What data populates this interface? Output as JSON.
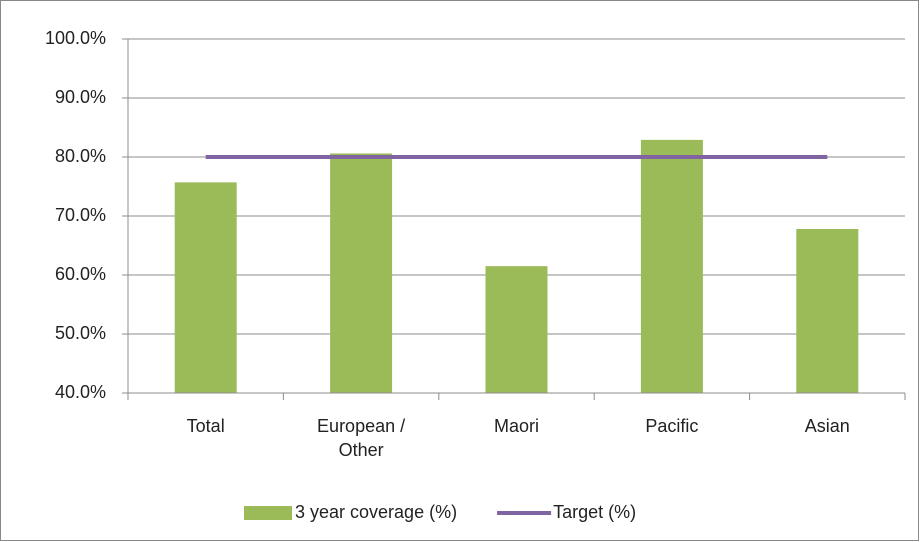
{
  "chart_data": {
    "type": "bar",
    "categories": [
      "Total",
      "European / Other",
      "Maori",
      "Pacific",
      "Asian"
    ],
    "series": [
      {
        "name": "3 year coverage (%)",
        "type": "bar",
        "color": "#9bbb59",
        "values": [
          75.7,
          80.6,
          61.5,
          82.9,
          67.8
        ]
      },
      {
        "name": "Target (%)",
        "type": "line",
        "color": "#8064a2",
        "values": [
          80,
          80,
          80,
          80,
          80
        ]
      }
    ],
    "ylim": [
      40,
      100
    ],
    "yticks": [
      {
        "value": 40,
        "label": "40.0%"
      },
      {
        "value": 50,
        "label": "50.0%"
      },
      {
        "value": 60,
        "label": "60.0%"
      },
      {
        "value": 70,
        "label": "70.0%"
      },
      {
        "value": 80,
        "label": "80.0%"
      },
      {
        "value": 90,
        "label": "90.0%"
      },
      {
        "value": 100,
        "label": "100.0%"
      }
    ],
    "grid": true,
    "legend": "bottom"
  }
}
